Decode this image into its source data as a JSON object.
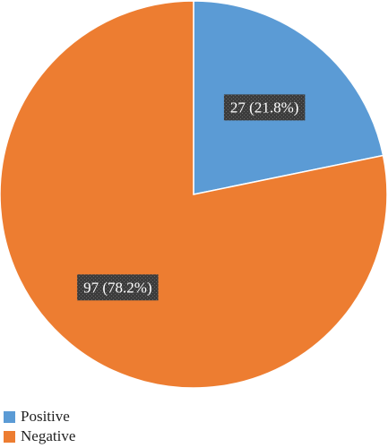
{
  "chart_data": {
    "type": "pie",
    "slices": [
      {
        "name": "Positive",
        "value": 27,
        "label": "27 (21.8%)",
        "color": "#5b9bd5"
      },
      {
        "name": "Negative",
        "value": 97,
        "label": "97 (78.2%)",
        "color": "#ed7d31"
      }
    ],
    "start": "12 o'clock",
    "direction": "clockwise",
    "legend": "bottom-left",
    "data_label_style": "dark patterned box, white text"
  }
}
